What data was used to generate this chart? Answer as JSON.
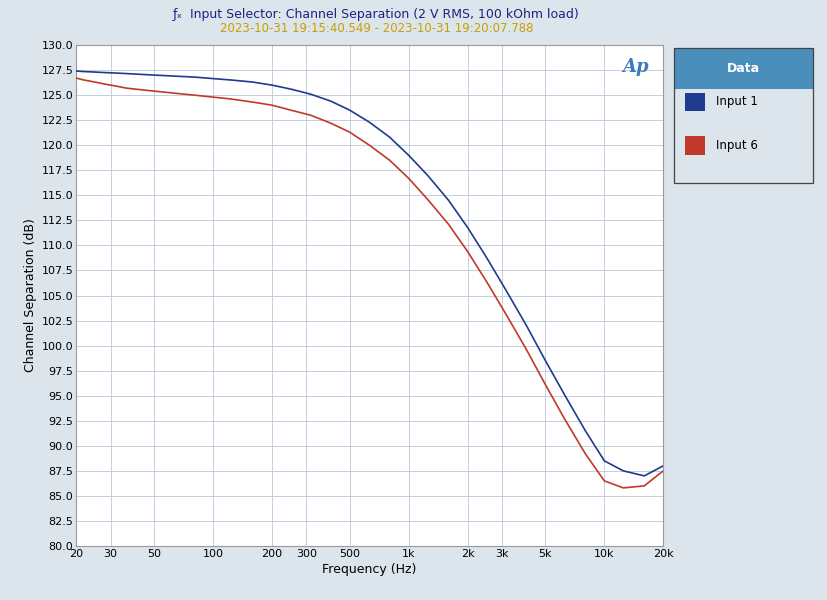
{
  "title": "Input Selector: Channel Separation (2 V RMS, 100 kOhm load)",
  "subtitle": "2023-10-31 19:15:40.549 - 2023-10-31 19:20:07.788",
  "xlabel": "Frequency (Hz)",
  "ylabel": "Channel Separation (dB)",
  "xlim": [
    20,
    20000
  ],
  "ylim": [
    80.0,
    130.0
  ],
  "yticks": [
    80.0,
    82.5,
    85.0,
    87.5,
    90.0,
    92.5,
    95.0,
    97.5,
    100.0,
    102.5,
    105.0,
    107.5,
    110.0,
    112.5,
    115.0,
    117.5,
    120.0,
    122.5,
    125.0,
    127.5,
    130.0
  ],
  "xtick_labels": [
    "20",
    "30",
    "50",
    "100",
    "200",
    "300",
    "500",
    "1k",
    "2k",
    "3k",
    "5k",
    "10k",
    "20k"
  ],
  "xtick_values": [
    20,
    30,
    50,
    100,
    200,
    300,
    500,
    1000,
    2000,
    3000,
    5000,
    10000,
    20000
  ],
  "line1_color": "#1f3a8f",
  "line2_color": "#c0392b",
  "legend_header": "Data",
  "legend_label1": "Input 1",
  "legend_label2": "Input 6",
  "legend_header_bg": "#4a8fbb",
  "fig_bg": "#dce4ec",
  "plot_bg": "#ffffff",
  "grid_color": "#b8c8d8",
  "title_color": "#1a237e",
  "subtitle_color": "#c8a000",
  "ap_color": "#3a7abd",
  "freq1": [
    20,
    22,
    25,
    28,
    32,
    36,
    40,
    50,
    63,
    80,
    100,
    125,
    160,
    200,
    250,
    315,
    400,
    500,
    630,
    800,
    1000,
    1250,
    1600,
    2000,
    2500,
    3150,
    4000,
    5000,
    6300,
    8000,
    10000,
    12500,
    16000,
    20000
  ],
  "db1": [
    127.4,
    127.35,
    127.3,
    127.25,
    127.2,
    127.15,
    127.1,
    127.0,
    126.9,
    126.8,
    126.65,
    126.5,
    126.3,
    126.0,
    125.6,
    125.1,
    124.4,
    123.5,
    122.3,
    120.8,
    119.0,
    117.0,
    114.5,
    111.8,
    108.8,
    105.5,
    102.0,
    98.5,
    95.0,
    91.5,
    88.5,
    87.5,
    87.0,
    88.0
  ],
  "freq6": [
    20,
    22,
    25,
    28,
    32,
    36,
    40,
    50,
    63,
    80,
    100,
    125,
    160,
    200,
    250,
    315,
    400,
    500,
    630,
    800,
    1000,
    1250,
    1600,
    2000,
    2500,
    3150,
    4000,
    5000,
    6300,
    8000,
    10000,
    12500,
    16000,
    20000
  ],
  "db6": [
    126.7,
    126.5,
    126.3,
    126.1,
    125.9,
    125.7,
    125.6,
    125.4,
    125.2,
    125.0,
    124.8,
    124.6,
    124.3,
    124.0,
    123.5,
    123.0,
    122.2,
    121.3,
    120.0,
    118.5,
    116.7,
    114.6,
    112.1,
    109.4,
    106.4,
    103.1,
    99.6,
    96.1,
    92.6,
    89.2,
    86.5,
    85.8,
    86.0,
    87.5
  ]
}
